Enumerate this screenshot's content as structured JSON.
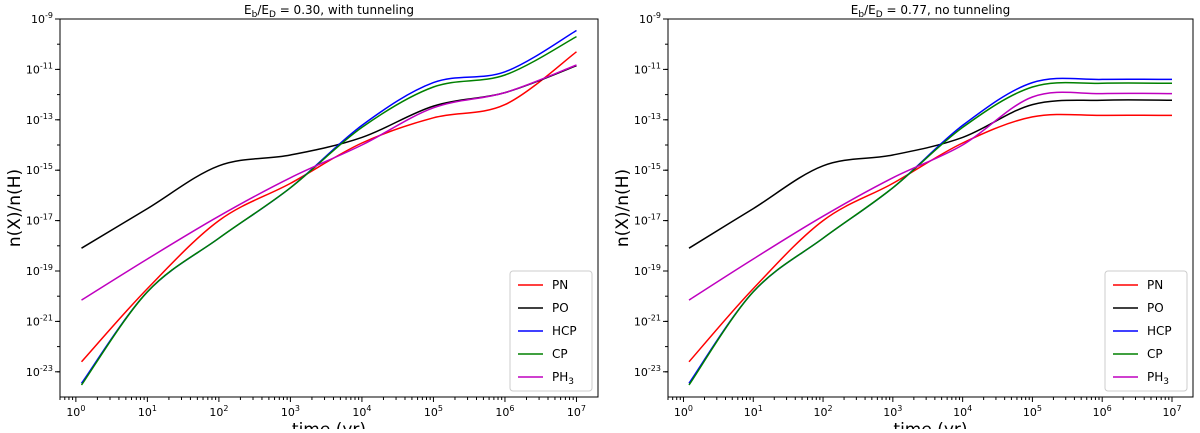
{
  "chart_data": [
    {
      "type": "line",
      "title": {
        "main": "E",
        "sub_b": "b",
        "sep": "/E",
        "sub_d": "D",
        "rest": " = 0.30,    with tunneling"
      },
      "xlabel": "time (yr)",
      "ylabel": "n(X)/n(H)",
      "xscale": "log",
      "yscale": "log",
      "xlim": [
        0.6,
        20000000.0
      ],
      "ylim": [
        1e-24,
        1e-09
      ],
      "xtick_exps": [
        "0",
        "1",
        "2",
        "3",
        "4",
        "5",
        "6",
        "7"
      ],
      "ytick_exps": [
        "-23",
        "-21",
        "-19",
        "-17",
        "-15",
        "-13",
        "-11",
        "-9"
      ],
      "legend_position": "lower right",
      "legend": [
        "PN",
        "PO",
        "HCP",
        "CP",
        "PH"
      ],
      "legend_sub": [
        "",
        "",
        "",
        "",
        "3"
      ],
      "series": [
        {
          "name": "PN",
          "color": "#ff0000",
          "x": [
            1.2,
            10,
            100,
            1000,
            10000,
            100000,
            1000000,
            10000000
          ],
          "y": [
            2.5e-23,
            2e-20,
            1e-17,
            3e-16,
            1.2e-14,
            1.2e-13,
            4e-13,
            5e-11
          ]
        },
        {
          "name": "PO",
          "color": "#000000",
          "x": [
            1.2,
            10,
            100,
            1000,
            10000,
            100000,
            1000000,
            10000000
          ],
          "y": [
            8e-19,
            3e-17,
            1.5e-15,
            4e-15,
            2e-14,
            3.5e-13,
            1.2e-12,
            1.4e-11
          ]
        },
        {
          "name": "HCP",
          "color": "#0000ff",
          "x": [
            1.2,
            10,
            100,
            1000,
            10000,
            100000,
            1000000,
            10000000
          ],
          "y": [
            3.5e-24,
            1.5e-20,
            2e-18,
            2e-16,
            6e-14,
            3e-12,
            8e-12,
            3.5e-10
          ]
        },
        {
          "name": "CP",
          "color": "#008000",
          "x": [
            1.2,
            10,
            100,
            1000,
            10000,
            100000,
            1000000,
            10000000
          ],
          "y": [
            3e-24,
            1.5e-20,
            2e-18,
            2e-16,
            5e-14,
            2e-12,
            6e-12,
            2e-10
          ]
        },
        {
          "name": "PH3",
          "color": "#bf00bf",
          "x": [
            1.2,
            10,
            100,
            1000,
            10000,
            100000,
            1000000,
            10000000
          ],
          "y": [
            7e-21,
            3e-19,
            1.5e-17,
            5e-16,
            1e-14,
            3e-13,
            1.2e-12,
            1.5e-11
          ]
        }
      ]
    },
    {
      "type": "line",
      "title": {
        "main": "E",
        "sub_b": "b",
        "sep": "/E",
        "sub_d": "D",
        "rest": " = 0.77,    no tunneling"
      },
      "xlabel": "time (yr)",
      "ylabel": "n(X)/n(H)",
      "xscale": "log",
      "yscale": "log",
      "xlim": [
        0.6,
        20000000.0
      ],
      "ylim": [
        1e-24,
        1e-09
      ],
      "xtick_exps": [
        "0",
        "1",
        "2",
        "3",
        "4",
        "5",
        "6",
        "7"
      ],
      "ytick_exps": [
        "-23",
        "-21",
        "-19",
        "-17",
        "-15",
        "-13",
        "-11",
        "-9"
      ],
      "legend_position": "lower right",
      "legend": [
        "PN",
        "PO",
        "HCP",
        "CP",
        "PH"
      ],
      "legend_sub": [
        "",
        "",
        "",
        "",
        "3"
      ],
      "series": [
        {
          "name": "PN",
          "color": "#ff0000",
          "x": [
            1.2,
            10,
            100,
            1000,
            10000,
            100000,
            1000000,
            10000000
          ],
          "y": [
            2.5e-23,
            2e-20,
            1e-17,
            3e-16,
            1.2e-14,
            1.3e-13,
            1.5e-13,
            1.5e-13
          ]
        },
        {
          "name": "PO",
          "color": "#000000",
          "x": [
            1.2,
            10,
            100,
            1000,
            10000,
            100000,
            1000000,
            10000000
          ],
          "y": [
            8e-19,
            3e-17,
            1.5e-15,
            4e-15,
            2e-14,
            4e-13,
            6e-13,
            6e-13
          ]
        },
        {
          "name": "HCP",
          "color": "#0000ff",
          "x": [
            1.2,
            10,
            100,
            1000,
            10000,
            100000,
            1000000,
            10000000
          ],
          "y": [
            3.5e-24,
            1.5e-20,
            2e-18,
            2e-16,
            6e-14,
            3e-12,
            4e-12,
            4e-12
          ]
        },
        {
          "name": "CP",
          "color": "#008000",
          "x": [
            1.2,
            10,
            100,
            1000,
            10000,
            100000,
            1000000,
            10000000
          ],
          "y": [
            3e-24,
            1.5e-20,
            2e-18,
            2e-16,
            5e-14,
            2e-12,
            2.8e-12,
            2.8e-12
          ]
        },
        {
          "name": "PH3",
          "color": "#bf00bf",
          "x": [
            1.2,
            10,
            100,
            1000,
            10000,
            100000,
            1000000,
            10000000
          ],
          "y": [
            7e-21,
            3e-19,
            1.5e-17,
            5e-16,
            1e-14,
            8e-13,
            1.1e-12,
            1.1e-12
          ]
        }
      ]
    }
  ]
}
